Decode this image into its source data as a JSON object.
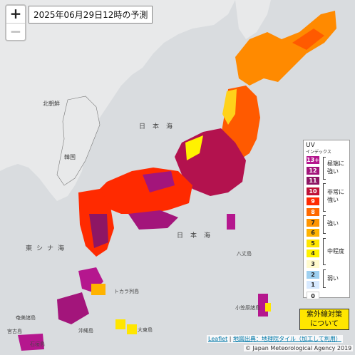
{
  "title": "2025年06月29日12時の予測",
  "zoom": {
    "in": "+",
    "out": "−"
  },
  "legend": {
    "header": "UV",
    "subheader": "インデックス",
    "levels": [
      {
        "label": "13+",
        "color": "#b5178e"
      },
      {
        "label": "12",
        "color": "#a3157b"
      },
      {
        "label": "11",
        "color": "#8e1664"
      },
      {
        "label": "10",
        "color": "#bf1137"
      },
      {
        "label": "9",
        "color": "#ff2a00"
      },
      {
        "label": "8",
        "color": "#ff6a00"
      },
      {
        "label": "7",
        "color": "#ff9500"
      },
      {
        "label": "6",
        "color": "#ffb300"
      },
      {
        "label": "5",
        "color": "#ffe600"
      },
      {
        "label": "4",
        "color": "#fff200"
      },
      {
        "label": "3",
        "color": "#fffacc"
      },
      {
        "label": "2",
        "color": "#9ed0f0"
      },
      {
        "label": "1",
        "color": "#d7e9ff"
      },
      {
        "label": "0",
        "color": "#ffffff"
      }
    ],
    "categories": [
      "極端に強い",
      "非常に強い",
      "強い",
      "中程度",
      "弱い"
    ]
  },
  "button": {
    "line1": "紫外線対策",
    "line2": "について"
  },
  "attribution": {
    "leaflet": "Leaflet",
    "sep": " | ",
    "tiles": "地図出典：地理院タイル（加工して利用）",
    "copyright": "© Japan Meteorological Agency 2019"
  },
  "places": {
    "sea_japan": "日本海",
    "beijing": "北朝鮮",
    "korea": "韓国",
    "east_china_sea": "東シナ海",
    "pacific": "日本海",
    "amami": "奄美諸島",
    "tokara": "トカラ列島",
    "okinawa": "沖縄島",
    "daito": "大東島",
    "ogasawara": "小笠原諸島",
    "hachijo": "八丈島",
    "miyako": "宮古島",
    "ishigaki": "石垣島"
  }
}
